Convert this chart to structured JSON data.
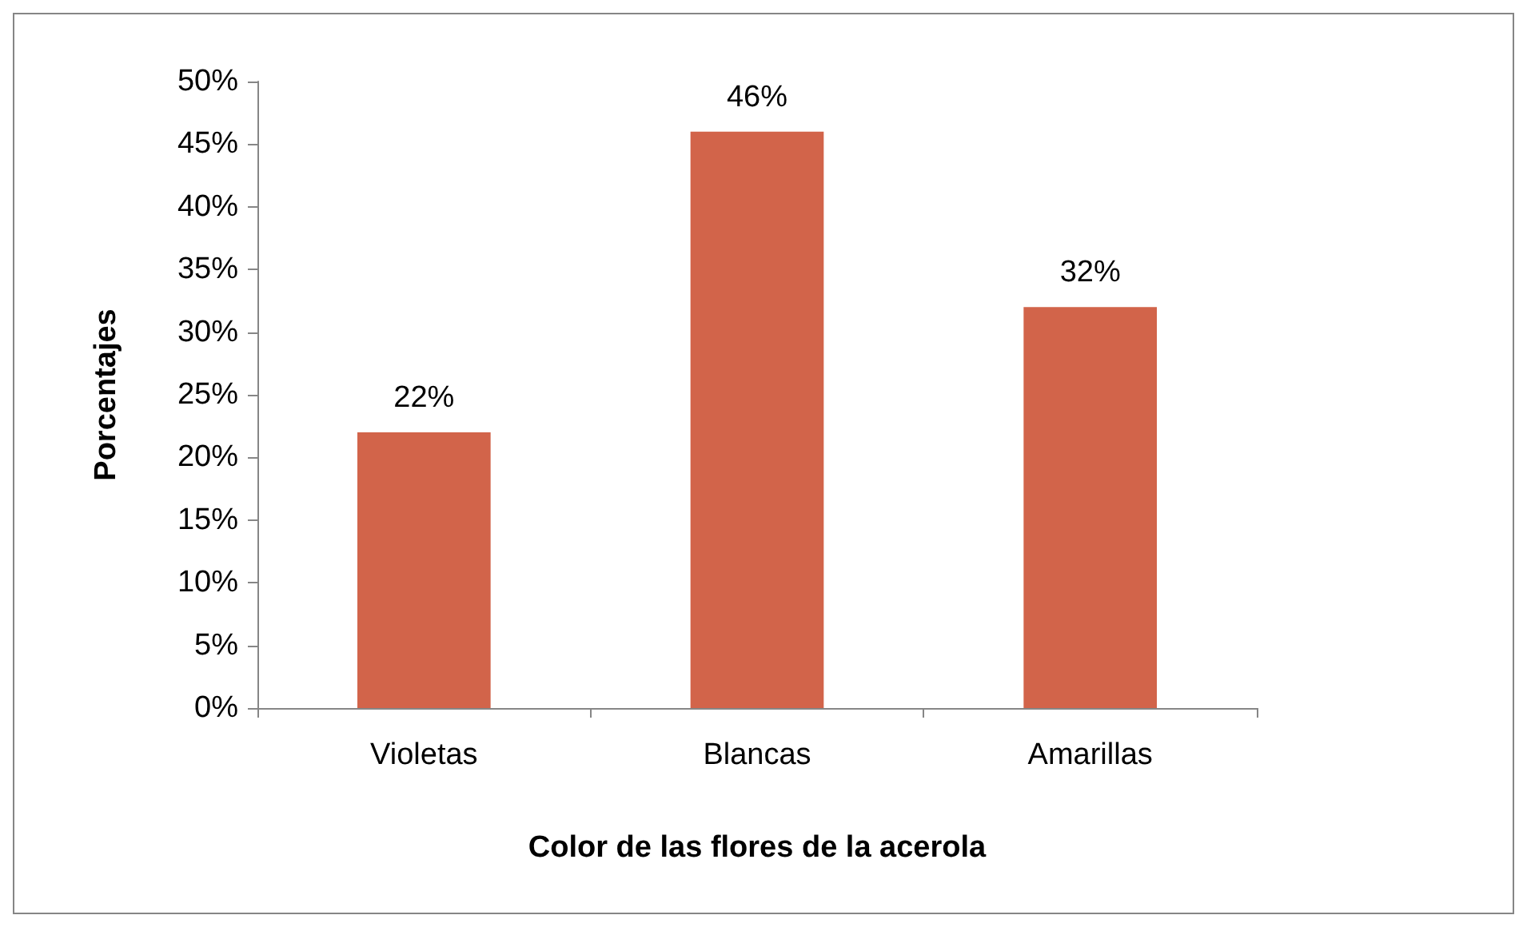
{
  "chart_data": {
    "type": "bar",
    "xlabel": "Color de las flores de la acerola",
    "ylabel": "Porcentajes",
    "categories": [
      "Violetas",
      "Blancas",
      "Amarillas"
    ],
    "values": [
      22,
      46,
      32
    ],
    "color": "#d2644a",
    "value_labels": [
      "22%",
      "46%",
      "32%"
    ],
    "ylim": [
      0,
      50
    ],
    "yticks": [
      {
        "value": 0,
        "label": "0%"
      },
      {
        "value": 5,
        "label": "5%"
      },
      {
        "value": 10,
        "label": "10%"
      },
      {
        "value": 15,
        "label": "15%"
      },
      {
        "value": 20,
        "label": "20%"
      },
      {
        "value": 25,
        "label": "25%"
      },
      {
        "value": 30,
        "label": "30%"
      },
      {
        "value": 35,
        "label": "35%"
      },
      {
        "value": 40,
        "label": "40%"
      },
      {
        "value": 45,
        "label": "45%"
      },
      {
        "value": 50,
        "label": "50%"
      }
    ],
    "grid": false
  }
}
